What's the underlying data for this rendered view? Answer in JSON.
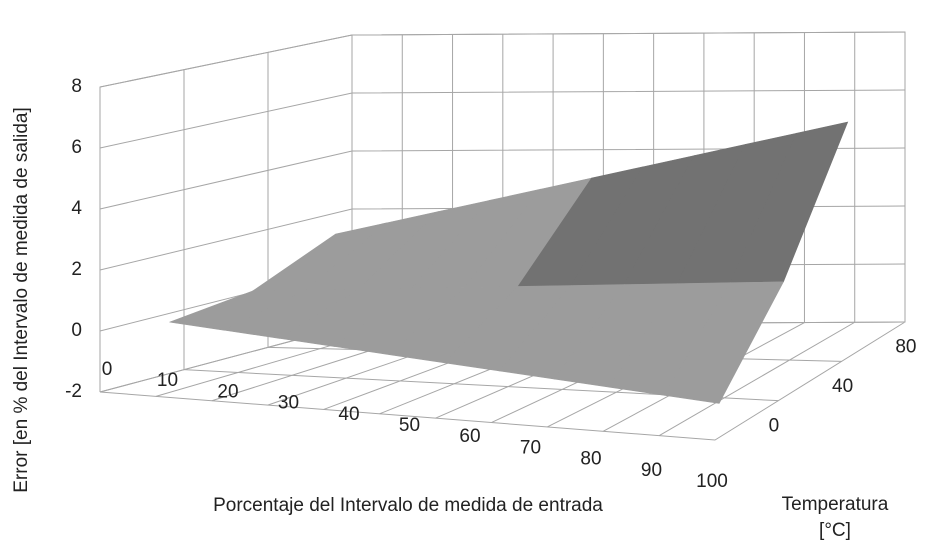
{
  "chart_data": {
    "type": "surface",
    "y_label": "Error [en % del Intervalo de medida de salida]",
    "x_label": "Porcentaje del Intervalo de medida de entrada",
    "z_label": "Temperatura [°C]",
    "categories": [
      "0",
      "10",
      "20",
      "30",
      "40",
      "50",
      "60",
      "70",
      "80",
      "90",
      "100"
    ],
    "series": [
      {
        "name": "0",
        "values": [
          0,
          -0.15,
          -0.3,
          -0.45,
          -0.6,
          -0.75,
          -0.9,
          -1.05,
          -1.2,
          -1.35,
          -1.5
        ]
      },
      {
        "name": "40",
        "values": [
          0.3,
          0.4,
          0.5,
          0.6,
          0.7,
          0.8,
          0.9,
          1.0,
          1.1,
          1.2,
          1.3
        ]
      },
      {
        "name": "80",
        "values": [
          1.5,
          1.9,
          2.3,
          2.7,
          3.1,
          3.5,
          3.9,
          4.3,
          4.7,
          5.1,
          5.5
        ]
      }
    ],
    "ylim": [
      -2,
      8
    ],
    "yticks": [
      -2,
      0,
      2,
      4,
      6,
      8
    ],
    "grid": true
  }
}
